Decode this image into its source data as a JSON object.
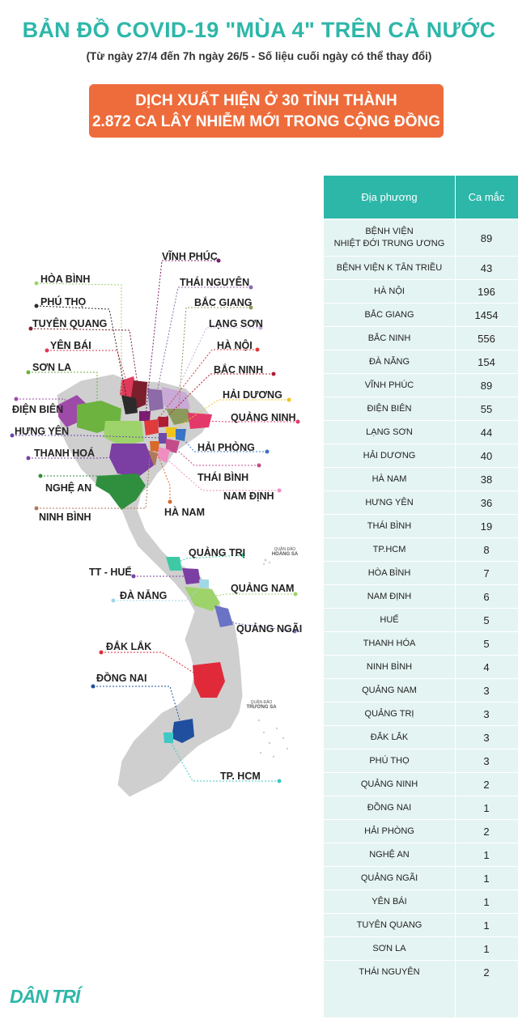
{
  "title": "BẢN ĐỒ COVID-19 \"MÙA 4\" TRÊN CẢ NƯỚC",
  "subtitle": "(Từ ngày 27/4 đến 7h ngày 26/5 - Số liệu cuối ngày có thể thay đổi)",
  "banner": {
    "line1": "DỊCH XUẤT HIỆN Ở 30 TỈNH THÀNH",
    "line2": "2.872 CA LÂY NHIỄM MỚI TRONG CỘNG ĐỒNG"
  },
  "colors": {
    "accent": "#2db7a9",
    "banner": "#ee6c3b",
    "table_bg": "#e4f4f2",
    "map_gray": "#cfcfcf"
  },
  "map": {
    "labels": {
      "vinh_phuc": "VĨNH PHÚC",
      "hoa_binh": "HÒA BÌNH",
      "thai_nguyen": "THÁI NGUYÊN",
      "phu_tho": "PHÚ THỌ",
      "bac_giang": "BẮC GIANG",
      "tuyen_quang": "TUYÊN QUANG",
      "lang_son": "LẠNG SƠN",
      "yen_bai": "YÊN BÁI",
      "ha_noi": "HÀ NỘI",
      "son_la": "SƠN LA",
      "bac_ninh": "BẮC NINH",
      "dien_bien": "ĐIỆN BIÊN",
      "hai_duong": "HẢI DƯƠNG",
      "quang_ninh": "QUẢNG NINH",
      "hung_yen": "HƯNG YÊN",
      "hai_phong": "HẢI PHÒNG",
      "thanh_hoa": "THANH HOÁ",
      "thai_binh": "THÁI BÌNH",
      "nghe_an": "NGHỆ AN",
      "nam_dinh": "NAM ĐỊNH",
      "ninh_binh": "NINH BÌNH",
      "ha_nam": "HÀ NAM",
      "quang_tri": "QUẢNG TRỊ",
      "tt_hue": "TT - HUẾ",
      "quang_nam": "QUẢNG NAM",
      "da_nang": "ĐÀ NẴNG",
      "quang_ngai": "QUẢNG NGÃI",
      "dak_lak": "ĐẮK LẮK",
      "dong_nai": "ĐỒNG NAI",
      "tp_hcm": "TP. HCM",
      "hoang_sa_1": "QUẦN ĐẢO",
      "hoang_sa_2": "HOÀNG SA",
      "truong_sa_1": "QUẦN ĐẢO",
      "truong_sa_2": "TRƯỜNG SA"
    }
  },
  "chart_data": {
    "type": "table",
    "columns": [
      "Địa phương",
      "Ca mắc"
    ],
    "rows": [
      {
        "name": "BỆNH VIỆN\nNHIỆT ĐỚI TRUNG ƯƠNG",
        "value": 89
      },
      {
        "name": "BỆNH VIỆN K TÂN TRIỀU",
        "value": 43
      },
      {
        "name": "HÀ NỘI",
        "value": 196
      },
      {
        "name": "BẮC GIANG",
        "value": 1454
      },
      {
        "name": "BẮC NINH",
        "value": 556
      },
      {
        "name": "ĐÀ NẴNG",
        "value": 154
      },
      {
        "name": "VĨNH PHÚC",
        "value": 89
      },
      {
        "name": "ĐIỆN BIÊN",
        "value": 55
      },
      {
        "name": "LẠNG SƠN",
        "value": 44
      },
      {
        "name": "HẢI DƯƠNG",
        "value": 40
      },
      {
        "name": "HÀ NAM",
        "value": 38
      },
      {
        "name": "HƯNG YÊN",
        "value": 36
      },
      {
        "name": "THÁI BÌNH",
        "value": 19
      },
      {
        "name": "TP.HCM",
        "value": 8
      },
      {
        "name": "HÒA BÌNH",
        "value": 7
      },
      {
        "name": "NAM ĐỊNH",
        "value": 6
      },
      {
        "name": "HUẾ",
        "value": 5
      },
      {
        "name": "THANH HÓA",
        "value": 5
      },
      {
        "name": "NINH BÌNH",
        "value": 4
      },
      {
        "name": "QUẢNG NAM",
        "value": 3
      },
      {
        "name": "QUẢNG TRỊ",
        "value": 3
      },
      {
        "name": "ĐẮK LẮK",
        "value": 3
      },
      {
        "name": "PHÚ THỌ",
        "value": 3
      },
      {
        "name": "QUẢNG NINH",
        "value": 2
      },
      {
        "name": "ĐỒNG NAI",
        "value": 1
      },
      {
        "name": "HẢI PHÒNG",
        "value": 2
      },
      {
        "name": "NGHỆ AN",
        "value": 1
      },
      {
        "name": "QUẢNG NGÃI",
        "value": 1
      },
      {
        "name": "YÊN BÁI",
        "value": 1
      },
      {
        "name": "TUYÊN QUANG",
        "value": 1
      },
      {
        "name": "SƠN LA",
        "value": 1
      },
      {
        "name": "THÁI NGUYÊN",
        "value": 2
      }
    ]
  },
  "logo": "DÂN TRÍ"
}
